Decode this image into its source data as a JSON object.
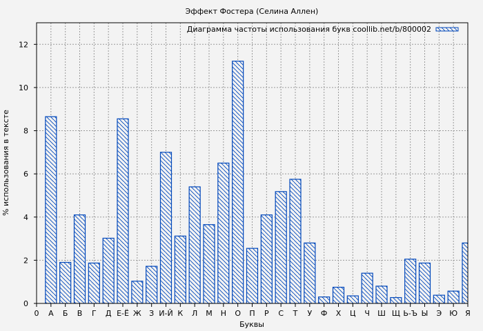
{
  "chart_data": {
    "type": "bar",
    "title": "Эффект Фостера (Селина Аллен)",
    "xlabel": "Буквы",
    "ylabel": "% использования в тексте",
    "legend": {
      "label": "Диаграмма частоты использования букв coollib.net/b/800002",
      "placement": "top-right"
    },
    "x_origin_label": "0",
    "categories": [
      "А",
      "Б",
      "В",
      "Г",
      "Д",
      "Е-Ё",
      "Ж",
      "З",
      "И-Й",
      "К",
      "Л",
      "М",
      "Н",
      "О",
      "П",
      "Р",
      "С",
      "Т",
      "У",
      "Ф",
      "Х",
      "Ц",
      "Ч",
      "Ш",
      "Щ",
      "Ь-Ъ",
      "Ы",
      "Э",
      "Ю",
      "Я"
    ],
    "values": [
      8.65,
      1.9,
      4.1,
      1.87,
      3.02,
      8.55,
      1.03,
      1.72,
      7.0,
      3.12,
      5.4,
      3.65,
      6.5,
      11.22,
      2.55,
      4.1,
      5.18,
      5.75,
      2.8,
      0.3,
      0.75,
      0.35,
      1.4,
      0.8,
      0.27,
      2.05,
      1.87,
      0.38,
      0.57,
      2.8
    ],
    "yticks": [
      0,
      2,
      4,
      6,
      8,
      10,
      12
    ],
    "ylim": [
      0,
      13
    ],
    "xlim": [
      0,
      30
    ],
    "grid": true,
    "colors": {
      "bar": "#0047bb",
      "background": "#f3f3f3",
      "grid": "#999999"
    }
  }
}
